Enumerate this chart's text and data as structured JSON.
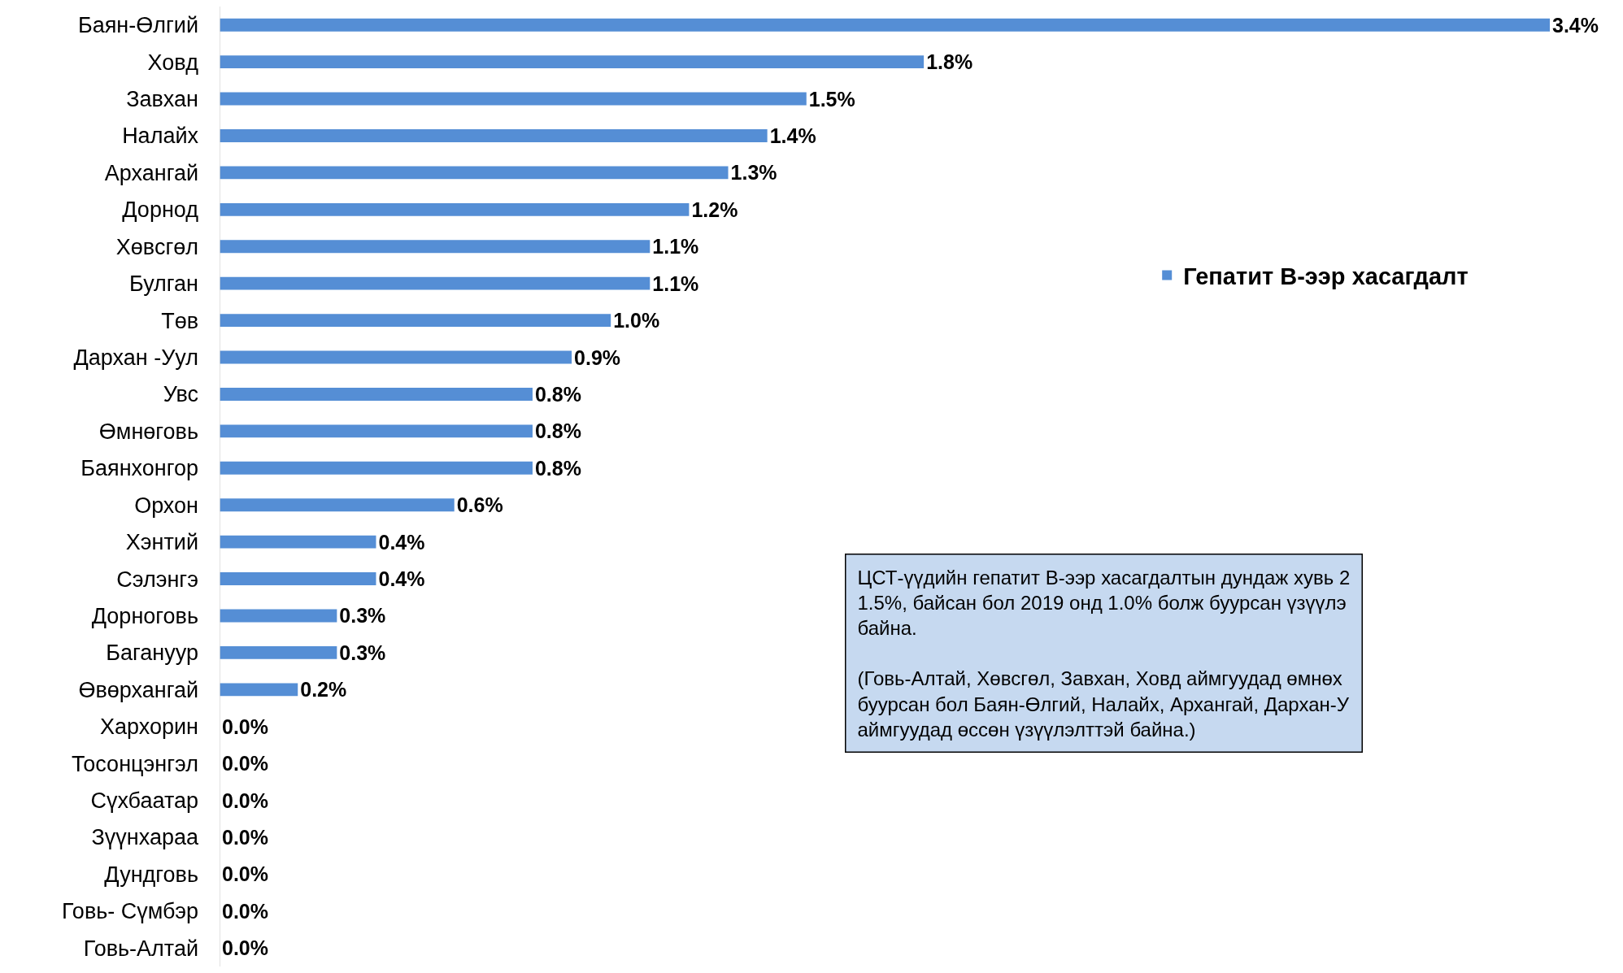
{
  "chart_data": {
    "type": "bar",
    "orientation": "horizontal",
    "legend": "right",
    "categories": [
      "Баян-Өлгий",
      "Ховд",
      "Завхан",
      "Налайх",
      "Архангай",
      "Дорнод",
      "Хөвсгөл",
      "Булган",
      "Төв",
      "Дархан -Уул",
      "Увс",
      "Өмнөговь",
      "Баянхонгор",
      "Орхон",
      "Хэнтий",
      "Сэлэнгэ",
      "Дорноговь",
      "Багануур",
      "Өвөрхангай",
      "Хархорин",
      "Тосонцэнгэл",
      "Сүхбаатар",
      "Зүүнхараа",
      "Дундговь",
      "Говь- Сүмбэр",
      "Говь-Алтай"
    ],
    "series": [
      {
        "name": "Гепатит В-ээр хасагдалт",
        "color": "#558ed5",
        "values": [
          3.4,
          1.8,
          1.5,
          1.4,
          1.3,
          1.2,
          1.1,
          1.1,
          1.0,
          0.9,
          0.8,
          0.8,
          0.8,
          0.6,
          0.4,
          0.4,
          0.3,
          0.3,
          0.2,
          0.0,
          0.0,
          0.0,
          0.0,
          0.0,
          0.0,
          0.0
        ],
        "value_labels": [
          "3.4%",
          "1.8%",
          "1.5%",
          "1.4%",
          "1.3%",
          "1.2%",
          "1.1%",
          "1.1%",
          "1.0%",
          "0.9%",
          "0.8%",
          "0.8%",
          "0.8%",
          "0.6%",
          "0.4%",
          "0.4%",
          "0.3%",
          "0.3%",
          "0.2%",
          "0.0%",
          "0.0%",
          "0.0%",
          "0.0%",
          "0.0%",
          "0.0%",
          "0.0%"
        ]
      }
    ],
    "annotations": [
      "ЦСТ-үүдийн гепатит В-ээр хасагдалтын дундаж хувь 2\n1.5%, байсан бол 2019 онд 1.0% болж буурсан үзүүлэ\nбайна.\n\n(Говь-Алтай, Хөвсгөл, Завхан, Ховд аймгуудад өмнөх\nбуурсан бол Баян-Өлгий, Налайх, Архангай, Дархан-У\nаймгуудад өссөн үзүүлэлттэй байна.)"
    ]
  }
}
